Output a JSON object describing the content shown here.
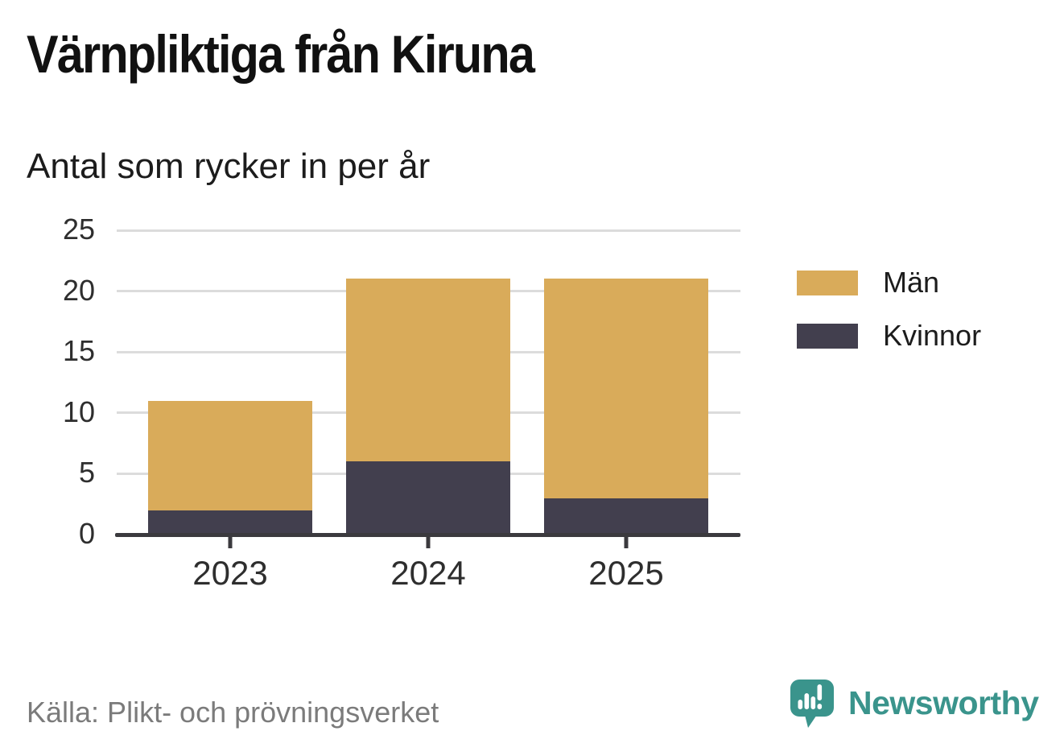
{
  "title": "Värnpliktiga från Kiruna",
  "subtitle": "Antal som rycker in per år",
  "source": "Källa: Plikt- och prövningsverket",
  "brand": {
    "name": "Newsworthy",
    "color": "#3a948c",
    "icon": "bar-chart-speech-bubble-icon"
  },
  "colors": {
    "men": "#d9ab5a",
    "women": "#423f4e",
    "gridline": "#dcdcdc",
    "axis": "#3b3a3e",
    "tick_text": "#2e2e2e",
    "muted_text": "#7b7b7b"
  },
  "legend": {
    "items": [
      {
        "label": "Män",
        "color": "#d9ab5a"
      },
      {
        "label": "Kvinnor",
        "color": "#423f4e"
      }
    ]
  },
  "chart_data": {
    "type": "bar",
    "stacked": true,
    "title": "Värnpliktiga från Kiruna",
    "subtitle": "Antal som rycker in per år",
    "categories": [
      "2023",
      "2024",
      "2025"
    ],
    "series": [
      {
        "name": "Män",
        "color": "#d9ab5a",
        "values": [
          9,
          15,
          18
        ]
      },
      {
        "name": "Kvinnor",
        "color": "#423f4e",
        "values": [
          2,
          6,
          3
        ]
      }
    ],
    "totals": [
      11,
      21,
      21
    ],
    "xlabel": "",
    "ylabel": "",
    "ylim": [
      0,
      25
    ],
    "yticks": [
      0,
      5,
      10,
      15,
      20,
      25
    ],
    "grid": true,
    "legend_position": "right",
    "source": "Källa: Plikt- och prövningsverket"
  }
}
